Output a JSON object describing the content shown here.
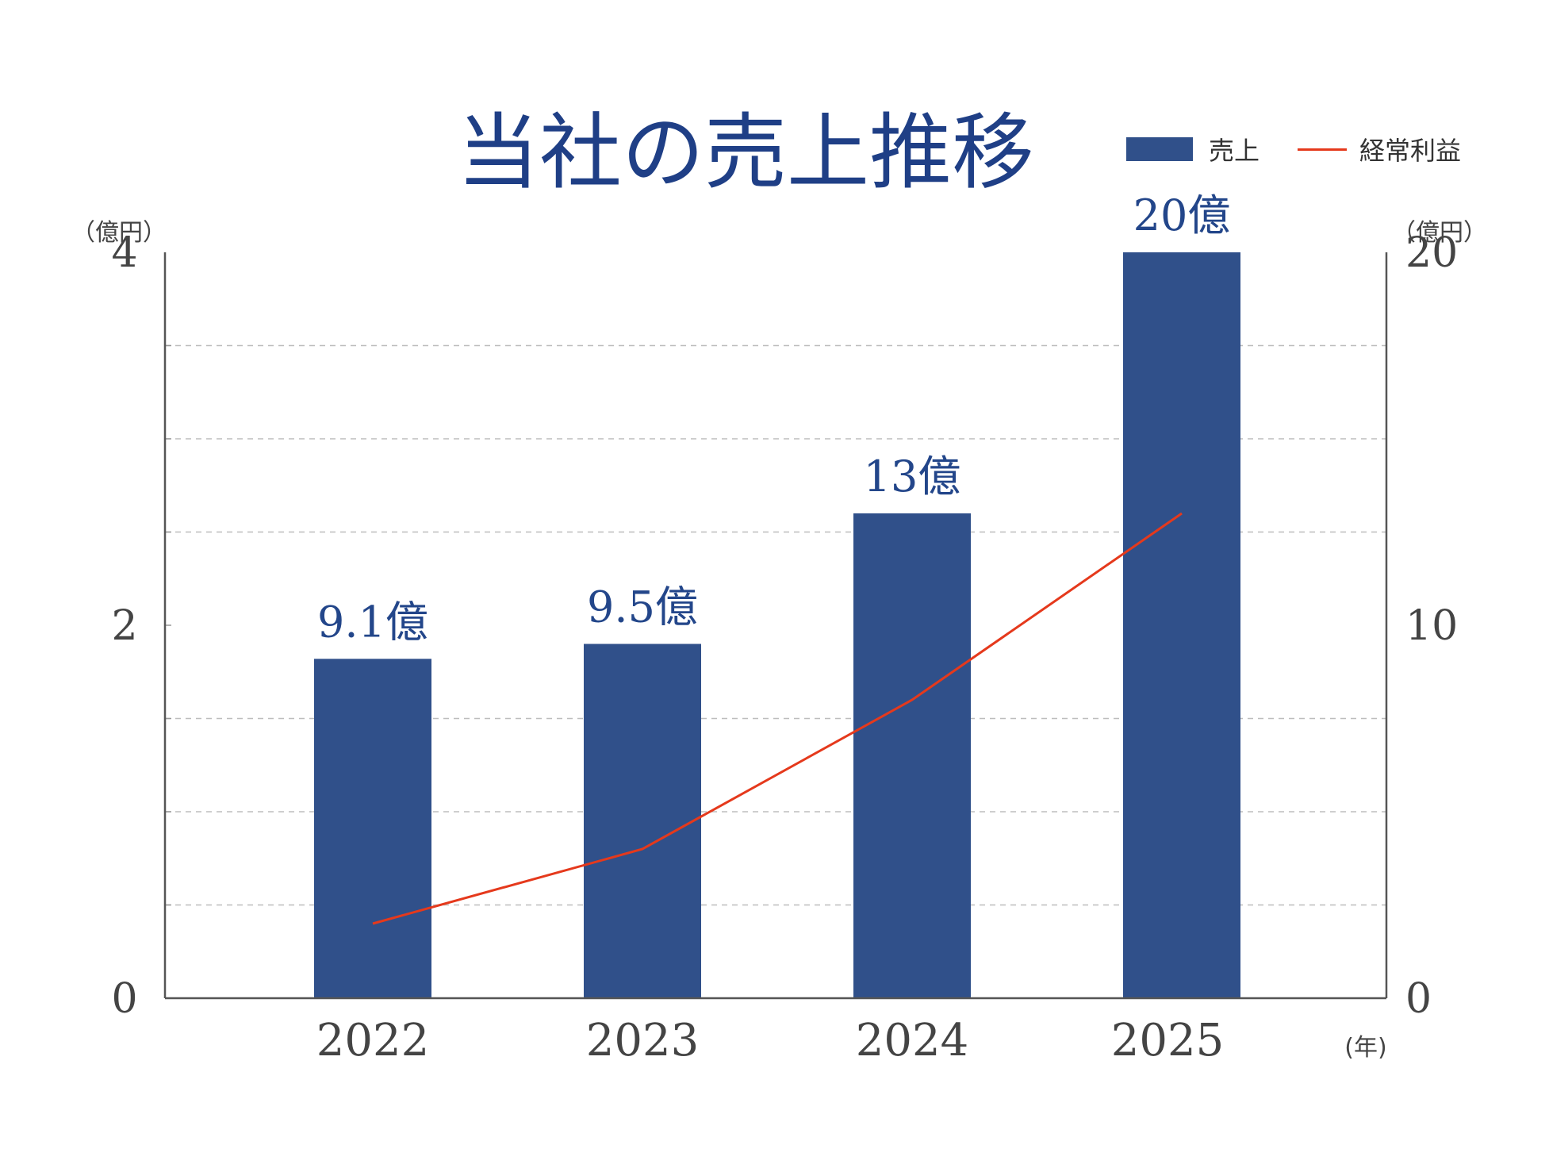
{
  "chart_data": {
    "type": "bar",
    "title": "当社の売上推移",
    "categories": [
      "2022",
      "2023",
      "2024",
      "2025"
    ],
    "series": [
      {
        "name": "売上",
        "kind": "bar",
        "axis": "right",
        "values": [
          9.1,
          9.5,
          13,
          20
        ],
        "data_labels": [
          "9.1億",
          "9.5億",
          "13億",
          "20億"
        ]
      },
      {
        "name": "経常利益",
        "kind": "line",
        "axis": "left",
        "values": [
          0.4,
          0.8,
          1.6,
          2.6
        ]
      }
    ],
    "y_left": {
      "unit_label": "（億円）",
      "ylim": [
        0,
        4
      ],
      "ticks": [
        "0",
        "2",
        "4"
      ]
    },
    "y_right": {
      "unit_label": "（億円）",
      "ylim": [
        0,
        20
      ],
      "ticks": [
        "0",
        "10",
        "20"
      ]
    },
    "x_unit_label": "(年)",
    "grid": "dashed horizontal",
    "legend_placement": "top-right",
    "colors": {
      "bar": "#30508a",
      "line": "#e5391c",
      "title": "#1f3f86",
      "data_label": "#23468a"
    }
  }
}
